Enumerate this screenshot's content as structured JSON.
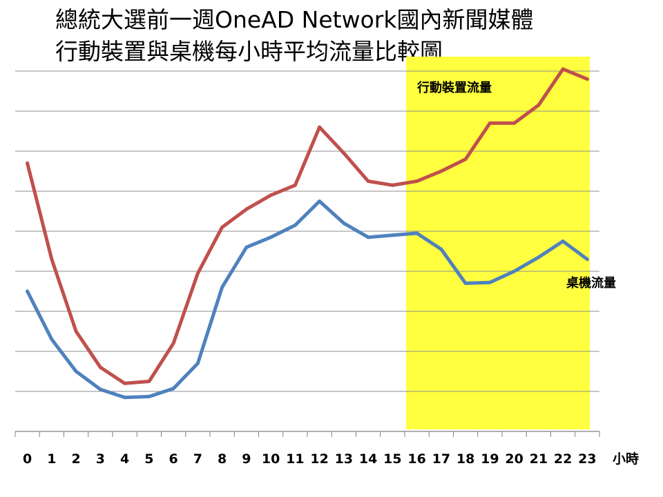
{
  "chart_data": {
    "type": "line",
    "title_line1": "總統大選前一週OneAD  Network國內新聞媒體",
    "title_line2": "行動裝置與桌機每小時平均流量比較圖",
    "xlabel": "小時",
    "ylabel": "",
    "x": [
      0,
      1,
      2,
      3,
      4,
      5,
      6,
      7,
      8,
      9,
      10,
      11,
      12,
      13,
      14,
      15,
      16,
      17,
      18,
      19,
      20,
      21,
      22,
      23
    ],
    "ylim": [
      0,
      9
    ],
    "grid": true,
    "y_ticks_shown": false,
    "highlight": {
      "x_range": [
        16,
        23
      ],
      "color": "#ffff40"
    },
    "series": [
      {
        "name": "行動裝置流量",
        "color": "#c0504d",
        "values": [
          6.7,
          4.3,
          2.5,
          1.6,
          1.2,
          1.25,
          2.2,
          3.95,
          5.1,
          5.55,
          5.9,
          6.15,
          7.6,
          6.95,
          6.25,
          6.15,
          6.25,
          6.5,
          6.8,
          7.7,
          7.7,
          8.15,
          9.05,
          8.8
        ]
      },
      {
        "name": "桌機流量",
        "color": "#4f81bd",
        "values": [
          3.5,
          2.3,
          1.5,
          1.05,
          0.85,
          0.87,
          1.07,
          1.7,
          3.6,
          4.6,
          4.85,
          5.15,
          5.75,
          5.2,
          4.85,
          4.9,
          4.95,
          4.55,
          3.7,
          3.72,
          4.0,
          4.35,
          4.75,
          4.3
        ]
      }
    ]
  }
}
